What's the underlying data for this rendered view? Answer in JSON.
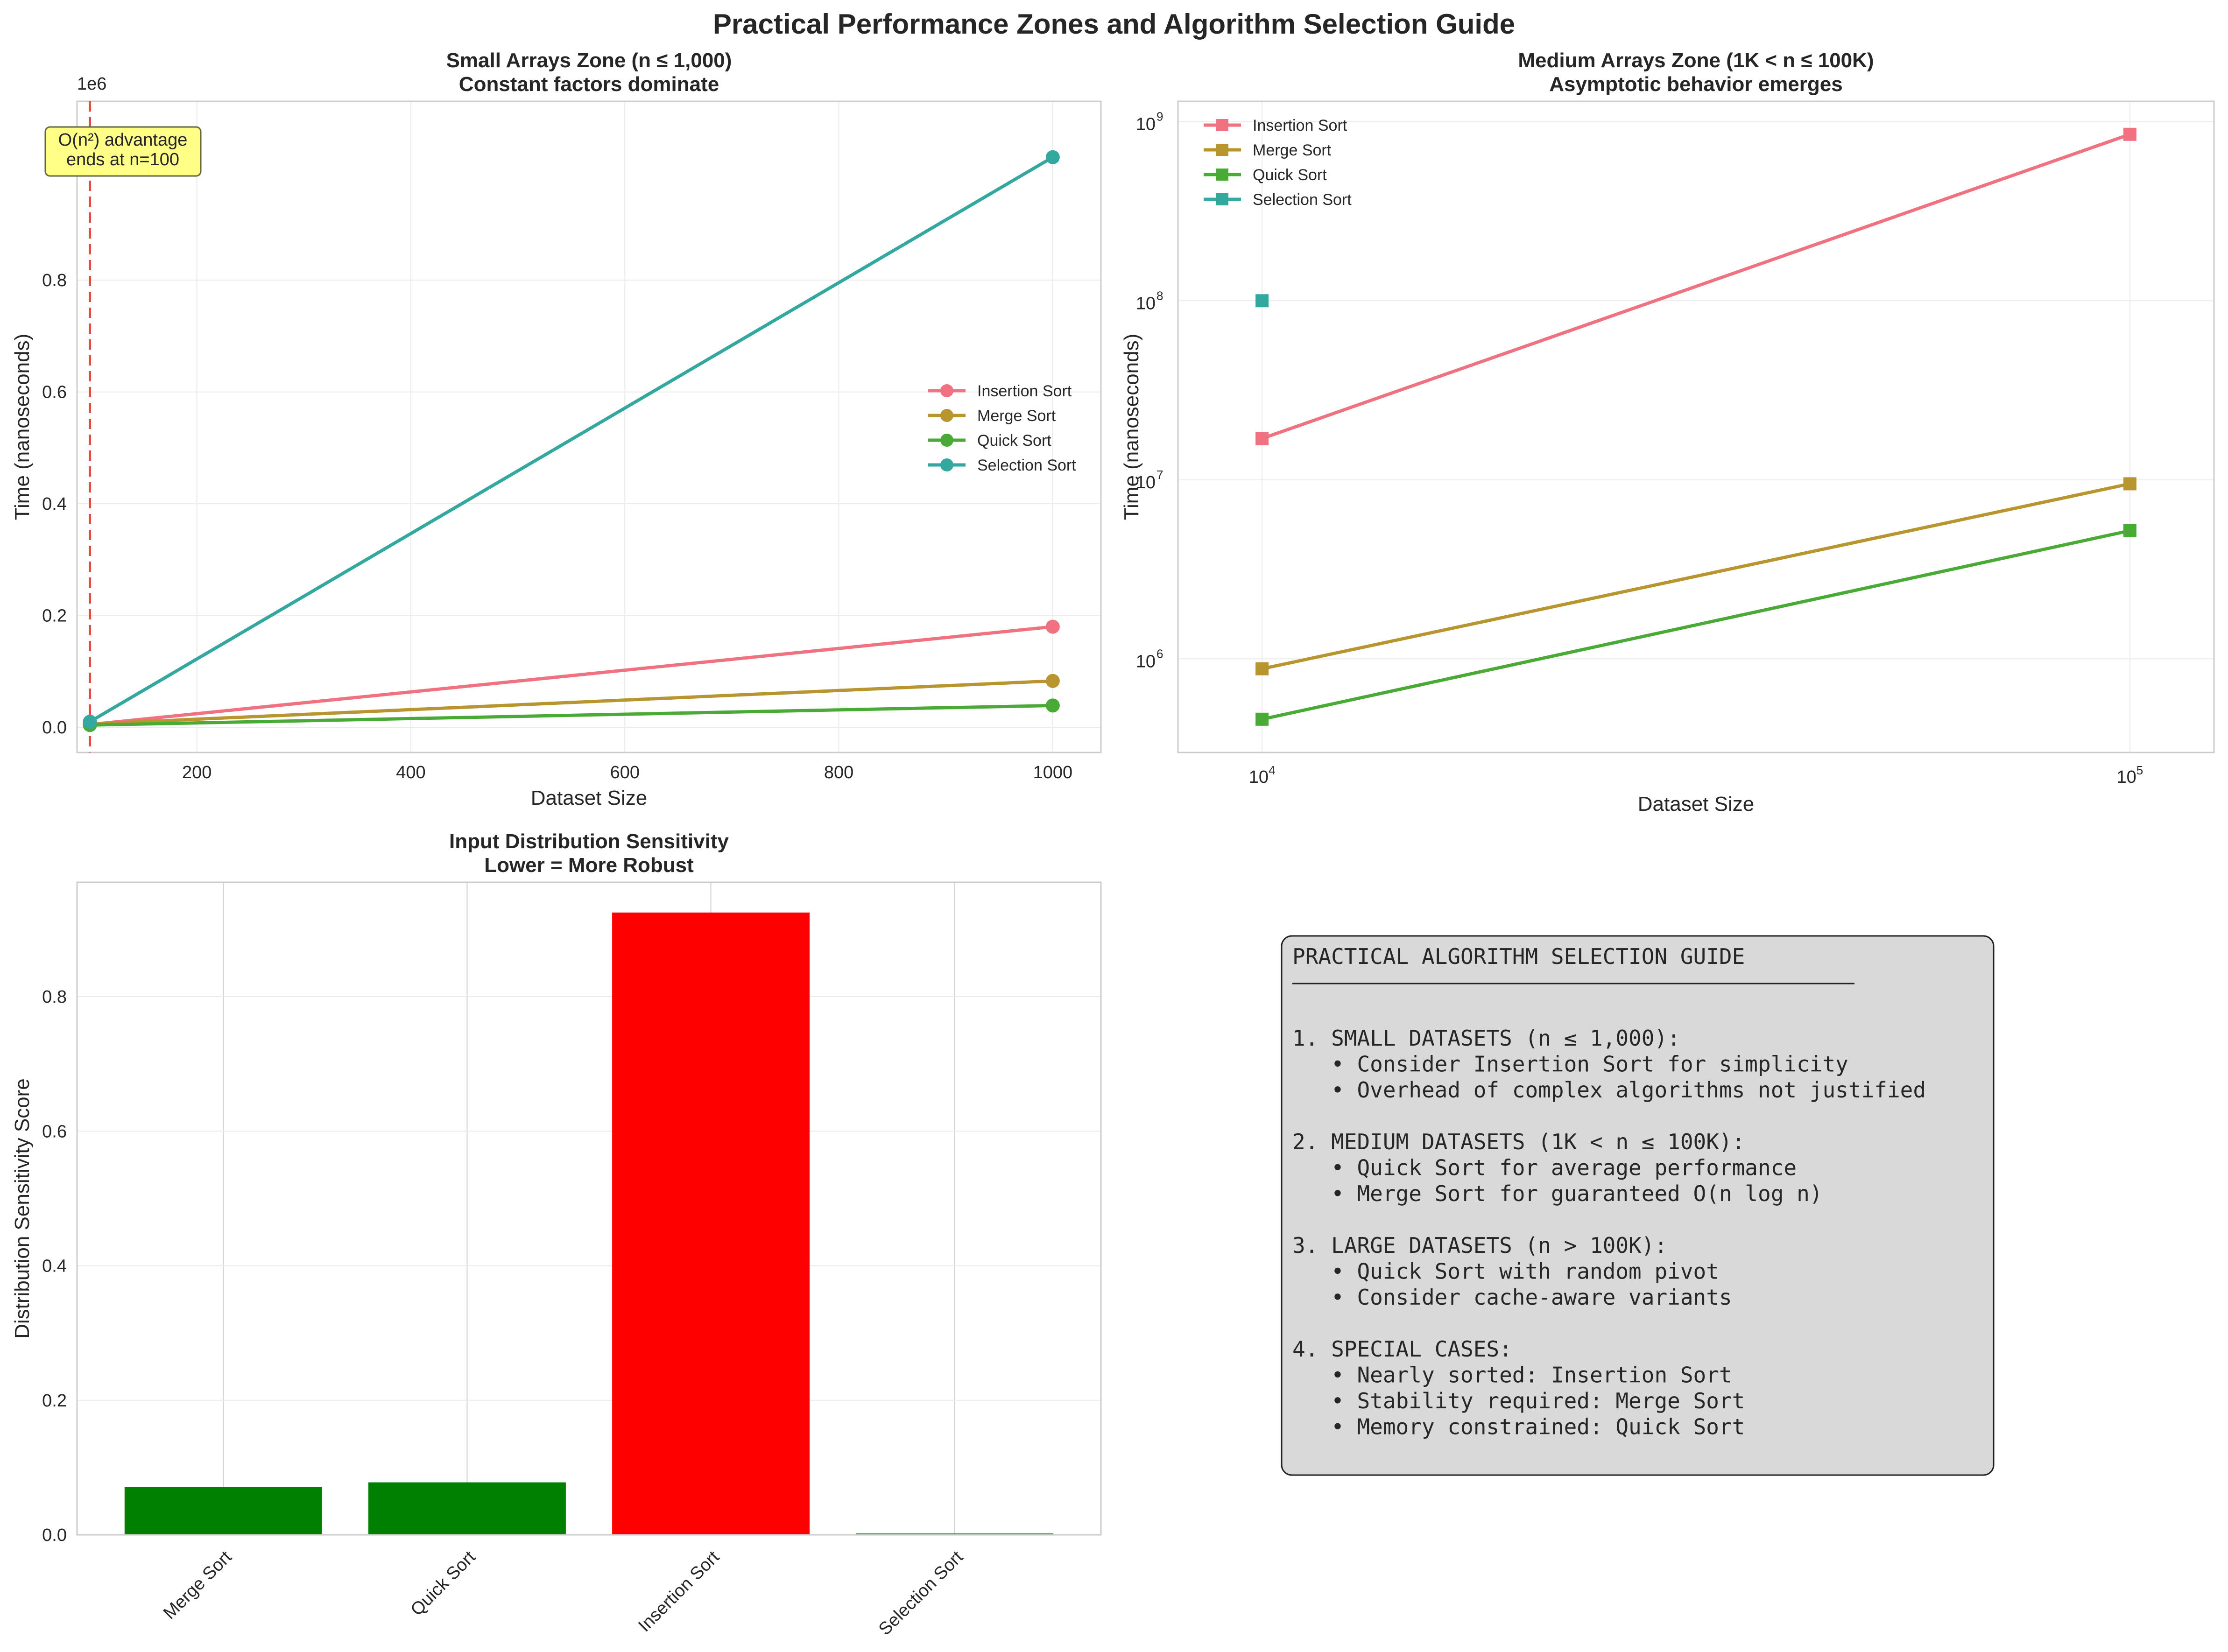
{
  "figure": {
    "title": "Practical Performance Zones and Algorithm Selection Guide"
  },
  "colors": {
    "insertion": "#f0717f",
    "merge": "#b8952e",
    "quick": "#49aa36",
    "selection": "#33a89e",
    "threshold_line": "#e24a4a",
    "bar_robust": "#008000",
    "bar_sensitive": "#ff0000",
    "annotation_fill": "#ffff88",
    "guide_fill": "#d9d9d9"
  },
  "chart_data": [
    {
      "id": "small",
      "type": "line",
      "title": "Small Arrays Zone (n ≤ 1,000)",
      "subtitle": "Constant factors dominate",
      "xlabel": "Dataset Size",
      "ylabel": "Time (nanoseconds)",
      "y_offset_label": "1e6",
      "xlim": [
        88,
        1045
      ],
      "ylim": [
        -45000,
        1120000
      ],
      "x_ticks": [
        200,
        400,
        600,
        800,
        1000
      ],
      "y_ticks": [
        0,
        0.2,
        0.4,
        0.6,
        0.8
      ],
      "y_scale": 1000000,
      "grid": true,
      "legend": "center-right",
      "marker": "circle",
      "x": [
        100,
        1000
      ],
      "series": [
        {
          "name": "Insertion Sort",
          "color_key": "insertion",
          "values": [
            5000,
            180000
          ]
        },
        {
          "name": "Merge Sort",
          "color_key": "merge",
          "values": [
            6000,
            83000
          ]
        },
        {
          "name": "Quick Sort",
          "color_key": "quick",
          "values": [
            4000,
            39000
          ]
        },
        {
          "name": "Selection Sort",
          "color_key": "selection",
          "values": [
            10000,
            1020000
          ]
        }
      ],
      "threshold": {
        "x": 100,
        "label_lines": [
          "O(n²) advantage",
          "ends at n=100"
        ]
      }
    },
    {
      "id": "medium",
      "type": "line",
      "title": "Medium Arrays Zone (1K < n ≤ 100K)",
      "subtitle": "Asymptotic behavior emerges",
      "xlabel": "Dataset Size",
      "ylabel": "Time (nanoseconds)",
      "x_scale": "log",
      "y_scale": "log",
      "xlim": [
        8000,
        125000
      ],
      "ylim": [
        300000,
        1300000000
      ],
      "x_ticks": [
        10000,
        100000
      ],
      "y_ticks": [
        1000000,
        10000000,
        100000000,
        1000000000
      ],
      "grid": true,
      "legend": "top-left",
      "marker": "square",
      "x": [
        10000,
        100000
      ],
      "series": [
        {
          "name": "Insertion Sort",
          "color_key": "insertion",
          "values": [
            17000000,
            850000000
          ]
        },
        {
          "name": "Merge Sort",
          "color_key": "merge",
          "values": [
            880000,
            9500000
          ]
        },
        {
          "name": "Quick Sort",
          "color_key": "quick",
          "values": [
            460000,
            5200000
          ]
        },
        {
          "name": "Selection Sort",
          "color_key": "selection",
          "values": [
            100000000,
            null
          ]
        }
      ]
    },
    {
      "id": "sensitivity",
      "type": "bar",
      "title": "Input Distribution Sensitivity",
      "subtitle": "Lower = More Robust",
      "xlabel": "",
      "ylabel": "Distribution Sensitivity Score",
      "ylim": [
        0,
        0.97
      ],
      "y_ticks": [
        0,
        0.2,
        0.4,
        0.6,
        0.8
      ],
      "grid": true,
      "categories": [
        "Merge Sort",
        "Quick Sort",
        "Insertion Sort",
        "Selection Sort"
      ],
      "values": [
        0.071,
        0.078,
        0.925,
        0.002
      ],
      "bar_color_keys": [
        "bar_robust",
        "bar_robust",
        "bar_sensitive",
        "bar_robust"
      ]
    }
  ],
  "guide": {
    "title": "PRACTICAL ALGORITHM SELECTION GUIDE",
    "lines": [
      "1. SMALL DATASETS (n ≤ 1,000):",
      "   • Consider Insertion Sort for simplicity",
      "   • Overhead of complex algorithms not justified",
      "",
      "2. MEDIUM DATASETS (1K < n ≤ 100K):",
      "   • Quick Sort for average performance",
      "   • Merge Sort for guaranteed O(n log n)",
      "",
      "3. LARGE DATASETS (n > 100K):",
      "   • Quick Sort with random pivot",
      "   • Consider cache-aware variants",
      "",
      "4. SPECIAL CASES:",
      "   • Nearly sorted: Insertion Sort",
      "   • Stability required: Merge Sort",
      "   • Memory constrained: Quick Sort"
    ]
  }
}
